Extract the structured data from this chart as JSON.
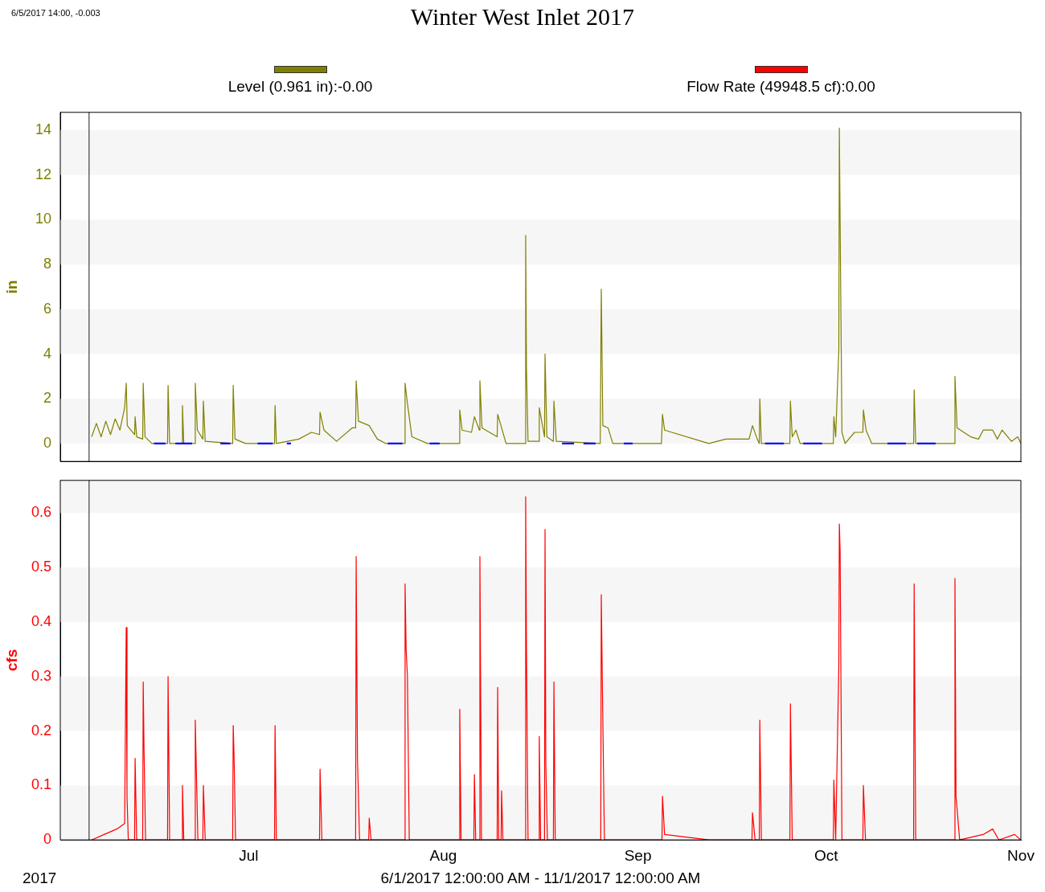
{
  "chart_data": [
    {
      "type": "line",
      "title": "Winter West Inlet 2017",
      "ylabel": "in",
      "annotations": [
        "6/5/2017 14:00, -0.003"
      ],
      "xlim": [
        "2017-06-01",
        "2017-11-01"
      ],
      "tick_labels": "y",
      "ylim": [
        -0.8,
        14.8
      ],
      "yticks": [
        0,
        2,
        4,
        6,
        8,
        10,
        12,
        14
      ],
      "legend": "top",
      "marker": "none",
      "line_style": "solid",
      "ref_lines": [
        {
          "axis": "x",
          "value": "2017-06-05T14:00",
          "color": "#404040"
        }
      ],
      "bands": [
        {
          "axis": "y",
          "from": 0,
          "to": 2,
          "color": "#f6f6f6"
        },
        {
          "axis": "y",
          "from": 4,
          "to": 6,
          "color": "#f6f6f6"
        },
        {
          "axis": "y",
          "from": 8,
          "to": 10,
          "color": "#f6f6f6"
        },
        {
          "axis": "y",
          "from": 12,
          "to": 14,
          "color": "#f6f6f6"
        }
      ],
      "series": [
        {
          "name": "Level (0.961 in):-0.00",
          "color": "#808000",
          "x": [
            "2017-06-06T00:00",
            "2017-06-06T18:00",
            "2017-06-07T12:00",
            "2017-06-08T06:00",
            "2017-06-09T00:00",
            "2017-06-09T18:00",
            "2017-06-10T12:00",
            "2017-06-11T06:00",
            "2017-06-11T12:00",
            "2017-06-11T16:00",
            "2017-06-12T20:00",
            "2017-06-12T22:00",
            "2017-06-13T04:00",
            "2017-06-14T03:00",
            "2017-06-14T05:00",
            "2017-06-14T12:00",
            "2017-06-15T14:00",
            "2017-06-18T02:00",
            "2017-06-18T04:00",
            "2017-06-18T10:00",
            "2017-06-20T09:00",
            "2017-06-20T11:00",
            "2017-06-20T16:00",
            "2017-06-22T10:00",
            "2017-06-22T12:00",
            "2017-06-22T20:00",
            "2017-06-23T17:00",
            "2017-06-23T19:00",
            "2017-06-24T02:00",
            "2017-06-28T11:00",
            "2017-06-28T13:00",
            "2017-06-28T20:00",
            "2017-06-30T12:00",
            "2017-07-05T03:00",
            "2017-07-05T05:00",
            "2017-07-05T10:00",
            "2017-07-09T00:00",
            "2017-07-11T00:00",
            "2017-07-12T07:00",
            "2017-07-12T09:00",
            "2017-07-13T00:00",
            "2017-07-15T00:00",
            "2017-07-17T12:00",
            "2017-07-18T01:00",
            "2017-07-18T03:00",
            "2017-07-18T12:00",
            "2017-07-20T05:00",
            "2017-07-21T12:00",
            "2017-07-22T21:00",
            "2017-07-25T20:00",
            "2017-07-25T22:00",
            "2017-07-26T07:00",
            "2017-07-27T00:00",
            "2017-07-29T12:00",
            "2017-08-03T13:00",
            "2017-08-03T15:00",
            "2017-08-04T00:00",
            "2017-08-05T12:00",
            "2017-08-05T23:00",
            "2017-08-06T18:00",
            "2017-08-06T20:00",
            "2017-08-07T04:00",
            "2017-08-09T14:00",
            "2017-08-09T16:00",
            "2017-08-10T07:00",
            "2017-08-11T00:00",
            "2017-08-14T01:00",
            "2017-08-14T03:00",
            "2017-08-14T06:00",
            "2017-08-14T12:00",
            "2017-08-16T05:00",
            "2017-08-16T07:00",
            "2017-08-17T03:00",
            "2017-08-17T05:00",
            "2017-08-17T12:00",
            "2017-08-18T13:00",
            "2017-08-18T15:00",
            "2017-08-19T00:00",
            "2017-08-26T00:00",
            "2017-08-26T04:00",
            "2017-08-26T10:00",
            "2017-08-27T06:00",
            "2017-08-28T00:00",
            "2017-09-04T18:00",
            "2017-09-04T22:00",
            "2017-09-05T06:00",
            "2017-09-12T07:00",
            "2017-09-15T00:00",
            "2017-09-18T17:00",
            "2017-09-19T06:00",
            "2017-09-20T00:00",
            "2017-09-20T08:00",
            "2017-09-20T10:00",
            "2017-09-20T16:00",
            "2017-09-25T05:00",
            "2017-09-25T07:00",
            "2017-09-25T14:00",
            "2017-09-26T04:00",
            "2017-09-26T20:00",
            "2017-10-02T03:00",
            "2017-10-02T05:00",
            "2017-10-02T12:00",
            "2017-10-03T00:00",
            "2017-10-03T02:00",
            "2017-10-03T05:00",
            "2017-10-03T12:00",
            "2017-10-04T00:00",
            "2017-10-05T12:00",
            "2017-10-06T20:00",
            "2017-10-06T22:00",
            "2017-10-07T08:00",
            "2017-10-08T06:00",
            "2017-10-14T22:00",
            "2017-10-15T00:00",
            "2017-10-15T06:00",
            "2017-10-21T10:00",
            "2017-10-21T12:00",
            "2017-10-21T20:00",
            "2017-10-24T00:00",
            "2017-10-25T06:00",
            "2017-10-26T00:00",
            "2017-10-27T12:00",
            "2017-10-28T06:00",
            "2017-10-29T00:00",
            "2017-10-30T12:00",
            "2017-10-31T12:00",
            "2017-11-01T00:00"
          ],
          "values": [
            0.3,
            0.9,
            0.3,
            1.0,
            0.4,
            1.1,
            0.6,
            1.6,
            2.7,
            0.8,
            0.4,
            1.2,
            0.3,
            0.2,
            2.7,
            0.3,
            0.0,
            0.0,
            2.6,
            0.0,
            0.0,
            1.7,
            0.0,
            0.0,
            2.7,
            0.6,
            0.2,
            1.9,
            0.1,
            0.0,
            2.6,
            0.2,
            0.0,
            0.0,
            1.7,
            0.0,
            0.2,
            0.5,
            0.4,
            1.4,
            0.6,
            0.1,
            0.7,
            0.7,
            2.8,
            1.0,
            0.8,
            0.2,
            0.0,
            0.0,
            2.7,
            1.8,
            0.3,
            0.0,
            0.0,
            1.5,
            0.6,
            0.5,
            1.2,
            0.6,
            2.8,
            0.7,
            0.3,
            1.3,
            0.7,
            0.0,
            0.0,
            9.3,
            3.4,
            0.1,
            0.1,
            1.6,
            0.3,
            4.0,
            0.3,
            0.1,
            1.9,
            0.1,
            0.0,
            6.9,
            0.8,
            0.7,
            0.0,
            0.0,
            1.3,
            0.6,
            0.0,
            0.2,
            0.2,
            0.8,
            0.2,
            0.0,
            2.0,
            0.0,
            0.0,
            1.9,
            0.3,
            0.6,
            0.0,
            0.0,
            1.2,
            0.3,
            4.2,
            14.1,
            9.9,
            0.5,
            0.0,
            0.5,
            0.5,
            1.5,
            0.6,
            0.0,
            0.0,
            2.4,
            0.0,
            0.0,
            3.0,
            0.7,
            0.3,
            0.2,
            0.6,
            0.6,
            0.2,
            0.6,
            0.1,
            0.3,
            0.0
          ]
        },
        {
          "color": "#0000ff",
          "x": [
            "2017-06-15T22:00",
            "2017-06-17T18:00",
            "2017-06-18T02:00",
            "2017-06-19T08:00",
            "2017-06-22T00:00",
            "2017-06-22T07:00",
            "2017-06-26T12:00",
            "2017-06-28T02:00",
            "2017-06-28T11:00",
            "2017-07-02T10:00",
            "2017-07-04T20:00",
            "2017-07-05T03:00",
            "2017-07-07T02:00",
            "2017-07-07T18:00",
            "2017-07-08T01:00",
            "2017-07-23T04:00",
            "2017-07-25T12:00",
            "2017-07-25T20:00",
            "2017-07-29T20:00",
            "2017-07-31T10:00",
            "2017-07-31T18:00",
            "2017-08-19T22:00",
            "2017-08-21T20:00",
            "2017-08-22T03:00",
            "2017-08-23T08:00",
            "2017-08-25T06:00",
            "2017-08-25T13:00",
            "2017-08-29T18:00",
            "2017-08-31T04:00",
            "2017-08-31T11:00",
            "2017-09-21T06:00",
            "2017-09-24T06:00",
            "2017-09-24T13:00",
            "2017-09-27T08:00",
            "2017-09-30T08:00",
            "2017-09-30T16:00",
            "2017-10-10T18:00",
            "2017-10-13T16:00",
            "2017-10-14T00:00",
            "2017-10-15T12:00",
            "2017-10-18T10:00"
          ],
          "values": [
            0,
            0,
            null,
            0,
            0,
            null,
            0,
            0,
            null,
            0,
            0,
            null,
            0,
            0,
            null,
            0,
            0,
            null,
            0,
            0,
            null,
            0,
            0,
            null,
            0,
            0,
            null,
            0,
            0,
            null,
            0,
            0,
            null,
            0,
            0,
            null,
            0,
            0,
            null,
            0,
            0
          ]
        }
      ]
    },
    {
      "type": "line",
      "ylabel": "cfs",
      "annotations": [
        "2017",
        "6/1/2017 12:00:00 AM - 11/1/2017 12:00:00 AM"
      ],
      "xlim": [
        "2017-06-01",
        "2017-11-01"
      ],
      "xticks": [
        {
          "value": "2017-07-01",
          "label": "Jul"
        },
        {
          "value": "2017-08-01",
          "label": "Aug"
        },
        {
          "value": "2017-09-01",
          "label": "Sep"
        },
        {
          "value": "2017-10-01",
          "label": "Oct"
        },
        {
          "value": "2017-11-01",
          "label": "Nov"
        }
      ],
      "ylim": [
        0,
        0.66
      ],
      "yticks": [
        0,
        0.1,
        0.2,
        0.3,
        0.4,
        0.5,
        0.6
      ],
      "legend": "top",
      "marker": "none",
      "line_style": "solid",
      "ref_lines": [
        {
          "axis": "x",
          "value": "2017-06-05T14:00",
          "color": "#404040"
        }
      ],
      "bands": [
        {
          "axis": "y",
          "from": 0,
          "to": 0.1,
          "color": "#f6f6f6"
        },
        {
          "axis": "y",
          "from": 0.2,
          "to": 0.3,
          "color": "#f6f6f6"
        },
        {
          "axis": "y",
          "from": 0.4,
          "to": 0.5,
          "color": "#f6f6f6"
        },
        {
          "axis": "y",
          "from": 0.6,
          "to": 0.66,
          "color": "#f6f6f6"
        }
      ],
      "series": [
        {
          "name": "Flow Rate (49948.5 cf):0.00",
          "color": "#ff0000",
          "x": [
            "2017-06-06T00:00",
            "2017-06-08T00:00",
            "2017-06-10T00:00",
            "2017-06-11T06:00",
            "2017-06-11T12:00",
            "2017-06-11T15:00",
            "2017-06-11T20:00",
            "2017-06-12T20:00",
            "2017-06-12T22:00",
            "2017-06-13T04:00",
            "2017-06-14T03:00",
            "2017-06-14T05:00",
            "2017-06-14T08:00",
            "2017-06-14T14:00",
            "2017-06-18T02:00",
            "2017-06-18T04:00",
            "2017-06-18T10:00",
            "2017-06-20T09:00",
            "2017-06-20T11:00",
            "2017-06-20T16:00",
            "2017-06-22T10:00",
            "2017-06-22T12:00",
            "2017-06-22T16:00",
            "2017-06-22T22:00",
            "2017-06-23T17:00",
            "2017-06-23T19:00",
            "2017-06-24T02:00",
            "2017-06-28T11:00",
            "2017-06-28T13:00",
            "2017-06-28T16:00",
            "2017-06-28T22:00",
            "2017-07-05T03:00",
            "2017-07-05T05:00",
            "2017-07-05T10:00",
            "2017-07-12T07:00",
            "2017-07-12T09:00",
            "2017-07-12T16:00",
            "2017-07-18T01:00",
            "2017-07-18T03:00",
            "2017-07-18T08:00",
            "2017-07-18T16:00",
            "2017-07-20T03:00",
            "2017-07-20T05:00",
            "2017-07-20T12:00",
            "2017-07-25T20:00",
            "2017-07-25T22:00",
            "2017-07-26T02:00",
            "2017-07-26T07:00",
            "2017-07-26T14:00",
            "2017-08-03T13:00",
            "2017-08-03T15:00",
            "2017-08-03T20:00",
            "2017-08-05T21:00",
            "2017-08-05T23:00",
            "2017-08-06T04:00",
            "2017-08-06T18:00",
            "2017-08-06T20:00",
            "2017-08-07T02:00",
            "2017-08-09T14:00",
            "2017-08-09T16:00",
            "2017-08-09T20:00",
            "2017-08-10T05:00",
            "2017-08-10T07:00",
            "2017-08-10T12:00",
            "2017-08-14T01:00",
            "2017-08-14T03:00",
            "2017-08-14T06:00",
            "2017-08-14T12:00",
            "2017-08-16T05:00",
            "2017-08-16T07:00",
            "2017-08-16T12:00",
            "2017-08-17T03:00",
            "2017-08-17T05:00",
            "2017-08-17T08:00",
            "2017-08-17T14:00",
            "2017-08-18T13:00",
            "2017-08-18T15:00",
            "2017-08-18T20:00",
            "2017-08-26T02:00",
            "2017-08-26T04:00",
            "2017-08-26T08:00",
            "2017-08-26T16:00",
            "2017-09-04T20:00",
            "2017-09-04T22:00",
            "2017-09-05T06:00",
            "2017-09-12T07:00",
            "2017-09-19T04:00",
            "2017-09-19T06:00",
            "2017-09-19T16:00",
            "2017-09-20T08:00",
            "2017-09-20T10:00",
            "2017-09-20T16:00",
            "2017-09-25T05:00",
            "2017-09-25T07:00",
            "2017-09-25T14:00",
            "2017-10-02T03:00",
            "2017-10-02T05:00",
            "2017-10-02T12:00",
            "2017-10-03T00:00",
            "2017-10-03T02:00",
            "2017-10-03T05:00",
            "2017-10-03T12:00",
            "2017-10-06T20:00",
            "2017-10-06T22:00",
            "2017-10-07T06:00",
            "2017-10-14T22:00",
            "2017-10-15T00:00",
            "2017-10-15T06:00",
            "2017-10-21T10:00",
            "2017-10-21T12:00",
            "2017-10-21T16:00",
            "2017-10-22T06:00",
            "2017-10-26T00:00",
            "2017-10-27T12:00",
            "2017-10-28T12:00",
            "2017-10-31T00:00",
            "2017-11-01T00:00"
          ],
          "values": [
            0.0,
            0.01,
            0.02,
            0.03,
            0.39,
            0.08,
            0.0,
            0.0,
            0.15,
            0.0,
            0.0,
            0.29,
            0.17,
            0.0,
            0.0,
            0.3,
            0.0,
            0.0,
            0.1,
            0.0,
            0.0,
            0.22,
            0.13,
            0.0,
            0.0,
            0.1,
            0.0,
            0.0,
            0.21,
            0.16,
            0.0,
            0.0,
            0.21,
            0.0,
            0.0,
            0.13,
            0.0,
            0.0,
            0.52,
            0.15,
            0.0,
            0.0,
            0.04,
            0.0,
            0.0,
            0.47,
            0.35,
            0.3,
            0.0,
            0.0,
            0.24,
            0.0,
            0.0,
            0.12,
            0.0,
            0.0,
            0.52,
            0.0,
            0.0,
            0.28,
            0.0,
            0.0,
            0.09,
            0.0,
            0.0,
            0.63,
            0.35,
            0.0,
            0.0,
            0.19,
            0.0,
            0.0,
            0.57,
            0.14,
            0.0,
            0.0,
            0.29,
            0.0,
            0.0,
            0.45,
            0.29,
            0.0,
            0.0,
            0.08,
            0.01,
            0.0,
            0.0,
            0.05,
            0.0,
            0.0,
            0.22,
            0.0,
            0.0,
            0.25,
            0.0,
            0.0,
            0.11,
            0.0,
            0.32,
            0.58,
            0.53,
            0.0,
            0.0,
            0.1,
            0.0,
            0.0,
            0.47,
            0.0,
            0.0,
            0.48,
            0.08,
            0.0,
            0.01,
            0.02,
            0.0,
            0.01,
            0.0
          ]
        }
      ]
    }
  ]
}
